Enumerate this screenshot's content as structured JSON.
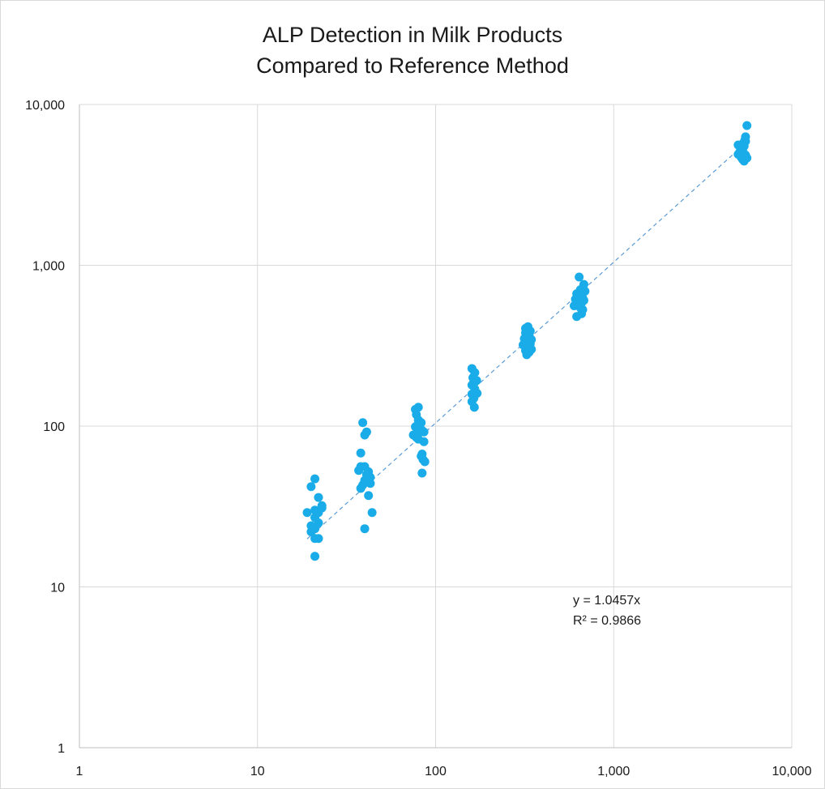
{
  "chart_data": {
    "type": "scatter",
    "title": "ALP Detection in Milk Products",
    "subtitle": "Compared to Reference Method",
    "xlabel": "",
    "ylabel": "",
    "x_scale": "log",
    "y_scale": "log",
    "xlim": [
      1,
      10000
    ],
    "ylim": [
      1,
      10000
    ],
    "grid": true,
    "x_ticks": [
      "1",
      "10",
      "100",
      "1,000",
      "10,000"
    ],
    "y_ticks": [
      "1",
      "10",
      "100",
      "1,000",
      "10,000"
    ],
    "point_color": "#1AACE8",
    "trendline": {
      "slope": 1.0457,
      "x_range": [
        19,
        5600
      ],
      "color": "#5B9BD5",
      "style": "dashed",
      "equation_label": "y = 1.0457x",
      "r2_label": "R² = 0.9866"
    },
    "series": [
      {
        "points": [
          [
            20,
            42
          ],
          [
            21,
            47
          ],
          [
            19,
            29
          ],
          [
            20,
            24
          ],
          [
            21,
            23
          ],
          [
            21,
            27
          ],
          [
            22,
            29
          ],
          [
            22,
            36
          ],
          [
            23,
            32
          ],
          [
            23,
            31
          ],
          [
            22,
            25
          ],
          [
            21,
            20
          ],
          [
            22,
            20
          ],
          [
            21,
            15.5
          ],
          [
            20,
            22
          ],
          [
            21,
            30
          ],
          [
            39,
            105
          ],
          [
            40,
            88
          ],
          [
            41,
            92
          ],
          [
            38,
            68
          ],
          [
            37,
            53
          ],
          [
            38,
            56
          ],
          [
            40,
            56
          ],
          [
            42,
            52
          ],
          [
            42,
            46
          ],
          [
            43,
            48
          ],
          [
            40,
            46
          ],
          [
            39,
            43
          ],
          [
            38,
            41
          ],
          [
            43,
            44
          ],
          [
            42,
            37
          ],
          [
            44,
            29
          ],
          [
            40,
            23
          ],
          [
            41,
            50
          ],
          [
            77,
            127
          ],
          [
            80,
            131
          ],
          [
            78,
            118
          ],
          [
            80,
            109
          ],
          [
            83,
            105
          ],
          [
            77,
            99
          ],
          [
            80,
            96
          ],
          [
            84,
            94
          ],
          [
            86,
            92
          ],
          [
            75,
            88
          ],
          [
            78,
            85
          ],
          [
            80,
            83
          ],
          [
            86,
            80
          ],
          [
            84,
            67
          ],
          [
            85,
            62
          ],
          [
            87,
            60
          ],
          [
            83,
            65
          ],
          [
            84,
            51
          ],
          [
            81,
            92
          ],
          [
            79,
            101
          ],
          [
            160,
            228
          ],
          [
            166,
            215
          ],
          [
            162,
            200
          ],
          [
            170,
            192
          ],
          [
            160,
            180
          ],
          [
            166,
            170
          ],
          [
            171,
            160
          ],
          [
            160,
            158
          ],
          [
            164,
            149
          ],
          [
            160,
            142
          ],
          [
            165,
            131
          ],
          [
            163,
            185
          ],
          [
            320,
            405
          ],
          [
            330,
            415
          ],
          [
            340,
            390
          ],
          [
            320,
            380
          ],
          [
            335,
            370
          ],
          [
            315,
            350
          ],
          [
            345,
            345
          ],
          [
            325,
            335
          ],
          [
            340,
            325
          ],
          [
            310,
            320
          ],
          [
            330,
            310
          ],
          [
            345,
            300
          ],
          [
            320,
            295
          ],
          [
            335,
            288
          ],
          [
            325,
            278
          ],
          [
            330,
            360
          ],
          [
            640,
            845
          ],
          [
            650,
            705
          ],
          [
            680,
            760
          ],
          [
            620,
            665
          ],
          [
            660,
            645
          ],
          [
            670,
            625
          ],
          [
            610,
            615
          ],
          [
            640,
            600
          ],
          [
            680,
            605
          ],
          [
            660,
            585
          ],
          [
            600,
            560
          ],
          [
            650,
            545
          ],
          [
            670,
            530
          ],
          [
            620,
            480
          ],
          [
            660,
            500
          ],
          [
            690,
            690
          ],
          [
            5600,
            7400
          ],
          [
            5500,
            6300
          ],
          [
            5450,
            6000
          ],
          [
            5300,
            5700
          ],
          [
            5400,
            5500
          ],
          [
            5200,
            5300
          ],
          [
            5300,
            5150
          ],
          [
            5100,
            5050
          ],
          [
            5000,
            4900
          ],
          [
            5500,
            4850
          ],
          [
            5200,
            4700
          ],
          [
            5600,
            4650
          ],
          [
            5300,
            4550
          ],
          [
            5400,
            4450
          ],
          [
            5000,
            5600
          ],
          [
            5500,
            5900
          ],
          [
            5200,
            5000
          ]
        ]
      }
    ]
  }
}
